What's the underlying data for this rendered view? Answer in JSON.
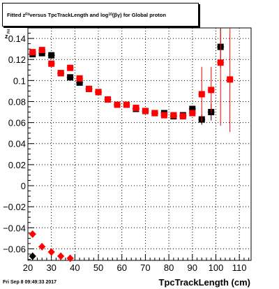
{
  "header": {
    "title_main": "Fitted  z",
    "title_sub1": "Fit",
    "title_mid": "  versus TpcTrackLength and log",
    "title_sub2": "10",
    "title_end": "(βγ) for Global proton"
  },
  "footer": {
    "timestamp": "Fri Sep  8 09:49:33 2017"
  },
  "colors": {
    "black_series": "#000000",
    "red_series": "#ff0000",
    "background": "#ffffff"
  },
  "chart_data": {
    "type": "scatter",
    "xlabel": "TpcTrackLength (cm)",
    "ylabel": "",
    "xlim": [
      20,
      115
    ],
    "ylim": [
      -0.071,
      0.15
    ],
    "grid": true,
    "x_ticks": [
      20,
      30,
      40,
      50,
      60,
      70,
      80,
      90,
      100,
      110
    ],
    "y_ticks": [
      -0.06,
      -0.04,
      -0.02,
      0,
      0.02,
      0.04,
      0.06,
      0.08,
      0.1,
      0.12,
      0.14
    ],
    "y_tick_labels": [
      "−0.06",
      "−0.04",
      "−0.02",
      "0",
      "0.02",
      "0.04",
      "0.06",
      "0.08",
      "0.1",
      "0.12",
      "0.14"
    ],
    "series": [
      {
        "color": "#000000",
        "marker": "square",
        "points": [
          {
            "x": 22,
            "y": 0.125,
            "err": 0.0015
          },
          {
            "x": 26,
            "y": 0.126,
            "err": 0.0015
          },
          {
            "x": 30,
            "y": 0.124,
            "err": 0.0015
          },
          {
            "x": 34,
            "y": 0.107,
            "err": 0.0015
          },
          {
            "x": 38,
            "y": 0.103,
            "err": 0.0015
          },
          {
            "x": 42,
            "y": 0.098,
            "err": 0.0015
          },
          {
            "x": 46,
            "y": 0.092,
            "err": 0.0015
          },
          {
            "x": 50,
            "y": 0.089,
            "err": 0.0015
          },
          {
            "x": 54,
            "y": 0.082,
            "err": 0.0015
          },
          {
            "x": 58,
            "y": 0.077,
            "err": 0.0015
          },
          {
            "x": 62,
            "y": 0.077,
            "err": 0.0015
          },
          {
            "x": 66,
            "y": 0.073,
            "err": 0.0015
          },
          {
            "x": 70,
            "y": 0.071,
            "err": 0.0015
          },
          {
            "x": 74,
            "y": 0.069,
            "err": 0.0015
          },
          {
            "x": 78,
            "y": 0.069,
            "err": 0.002
          },
          {
            "x": 82,
            "y": 0.066,
            "err": 0.002
          },
          {
            "x": 86,
            "y": 0.067,
            "err": 0.003
          },
          {
            "x": 90,
            "y": 0.073,
            "err": 0.003
          },
          {
            "x": 94,
            "y": 0.063,
            "err": 0.005
          },
          {
            "x": 98,
            "y": 0.07,
            "err": 0.008
          },
          {
            "x": 102,
            "y": 0.132,
            "err": 0.02
          }
        ]
      },
      {
        "color": "#ff0000",
        "marker": "square",
        "points": [
          {
            "x": 22,
            "y": 0.127,
            "err": 0.0015
          },
          {
            "x": 26,
            "y": 0.129,
            "err": 0.0015
          },
          {
            "x": 30,
            "y": 0.116,
            "err": 0.0015
          },
          {
            "x": 34,
            "y": 0.107,
            "err": 0.0015
          },
          {
            "x": 38,
            "y": 0.112,
            "err": 0.0015
          },
          {
            "x": 42,
            "y": 0.102,
            "err": 0.0015
          },
          {
            "x": 46,
            "y": 0.092,
            "err": 0.0015
          },
          {
            "x": 50,
            "y": 0.089,
            "err": 0.0015
          },
          {
            "x": 54,
            "y": 0.082,
            "err": 0.0015
          },
          {
            "x": 58,
            "y": 0.077,
            "err": 0.0015
          },
          {
            "x": 62,
            "y": 0.077,
            "err": 0.0015
          },
          {
            "x": 66,
            "y": 0.074,
            "err": 0.0015
          },
          {
            "x": 70,
            "y": 0.071,
            "err": 0.0015
          },
          {
            "x": 74,
            "y": 0.069,
            "err": 0.0015
          },
          {
            "x": 78,
            "y": 0.067,
            "err": 0.002
          },
          {
            "x": 82,
            "y": 0.067,
            "err": 0.002
          },
          {
            "x": 86,
            "y": 0.066,
            "err": 0.003
          },
          {
            "x": 90,
            "y": 0.069,
            "err": 0.003
          },
          {
            "x": 94,
            "y": 0.087,
            "err": 0.026
          },
          {
            "x": 98,
            "y": 0.091,
            "err": 0.022
          },
          {
            "x": 102,
            "y": 0.117,
            "err": 0.06
          },
          {
            "x": 106,
            "y": 0.101,
            "err": 0.05
          }
        ]
      },
      {
        "color": "#000000",
        "marker": "diamond",
        "points": [
          {
            "x": 22,
            "y": -0.067,
            "err": 0
          }
        ]
      },
      {
        "color": "#ff0000",
        "marker": "diamond",
        "points": [
          {
            "x": 22,
            "y": -0.046,
            "err": 0.002
          },
          {
            "x": 26,
            "y": -0.058,
            "err": 0.002
          },
          {
            "x": 30,
            "y": -0.063,
            "err": 0.002
          },
          {
            "x": 34,
            "y": -0.067,
            "err": 0.002
          },
          {
            "x": 38,
            "y": -0.069,
            "err": 0.002
          }
        ]
      }
    ]
  }
}
